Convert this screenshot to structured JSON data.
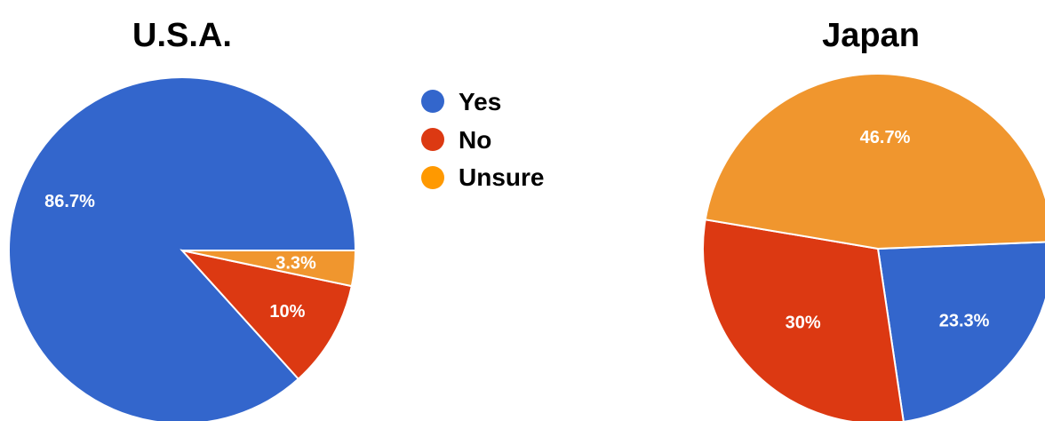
{
  "legend": [
    {
      "label": "Yes",
      "color": "#3366cc"
    },
    {
      "label": "No",
      "color": "#dc3912"
    },
    {
      "label": "Unsure",
      "color": "#ff9900"
    }
  ],
  "chart_data": [
    {
      "type": "pie",
      "title": "U.S.A.",
      "categories": [
        "Yes",
        "No",
        "Unsure"
      ],
      "values": [
        86.7,
        10,
        3.3
      ],
      "data_labels": [
        "86.7%",
        "10%",
        "3.3%"
      ],
      "colors": [
        "#3366cc",
        "#dc3912",
        "#f0962e"
      ],
      "legend": "center"
    },
    {
      "type": "pie",
      "title": "Japan",
      "categories": [
        "Yes",
        "No",
        "Unsure"
      ],
      "values": [
        23.3,
        30,
        46.7
      ],
      "data_labels": [
        "23.3%",
        "30%",
        "46.7%"
      ],
      "colors": [
        "#3366cc",
        "#dc3912",
        "#f0962e"
      ]
    }
  ]
}
